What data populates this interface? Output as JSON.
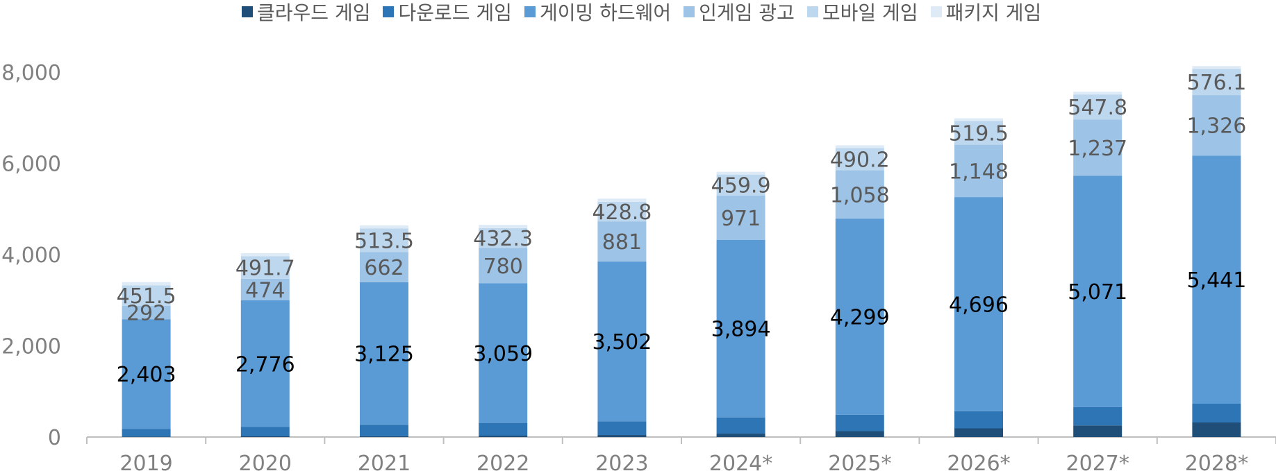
{
  "chart_data": {
    "type": "bar",
    "stacked": true,
    "title": "",
    "xlabel": "",
    "ylabel": "",
    "ylim": [
      0,
      8000
    ],
    "yticks": [
      0,
      2000,
      4000,
      6000,
      8000
    ],
    "ytick_labels": [
      "0",
      "2,000",
      "4,000",
      "6,000",
      "8,000"
    ],
    "grid": false,
    "legend_position": "top-right",
    "categories": [
      "2019",
      "2020",
      "2021",
      "2022",
      "2023",
      "2024*",
      "2025*",
      "2026*",
      "2027*",
      "2028*"
    ],
    "series": [
      {
        "name": "클라우드 게임",
        "color": "#1F4E79",
        "values": [
          10,
          15,
          20,
          30,
          45,
          75,
          130,
          190,
          255,
          320
        ],
        "labels": []
      },
      {
        "name": "다운로드 게임",
        "color": "#2E75B6",
        "values": [
          170,
          205,
          250,
          280,
          300,
          355,
          360,
          375,
          400,
          410
        ],
        "labels": []
      },
      {
        "name": "게이밍 하드웨어",
        "color": "#5B9BD5",
        "values": [
          2403,
          2776,
          3125,
          3059,
          3502,
          3894,
          4299,
          4696,
          5071,
          5441
        ],
        "labels": [
          "2,403",
          "2,776",
          "3,125",
          "3,059",
          "3,502",
          "3,894",
          "4,299",
          "4,696",
          "5,071",
          "5,441"
        ],
        "label_color": "#000000"
      },
      {
        "name": "인게임 광고",
        "color": "#9DC3E6",
        "values": [
          292,
          474,
          662,
          780,
          881,
          971,
          1058,
          1148,
          1237,
          1326
        ],
        "labels": [
          "292",
          "474",
          "662",
          "780",
          "881",
          "971",
          "1,058",
          "1,148",
          "1,237",
          "1,326"
        ],
        "label_color": "#595959"
      },
      {
        "name": "모바일 게임",
        "color": "#BDD7EE",
        "values": [
          451.5,
          491.7,
          513.5,
          432.3,
          428.8,
          459.9,
          490.2,
          519.5,
          547.8,
          576.1
        ],
        "labels": [
          "451.5",
          "491.7",
          "513.5",
          "432.3",
          "428.8",
          "459.9",
          "490.2",
          "519.5",
          "547.8",
          "576.1"
        ],
        "label_color": "#595959"
      },
      {
        "name": "패키지 게임",
        "color": "#DEEBF7",
        "values": [
          70,
          70,
          70,
          70,
          70,
          60,
          60,
          60,
          60,
          60
        ],
        "labels": []
      }
    ]
  }
}
